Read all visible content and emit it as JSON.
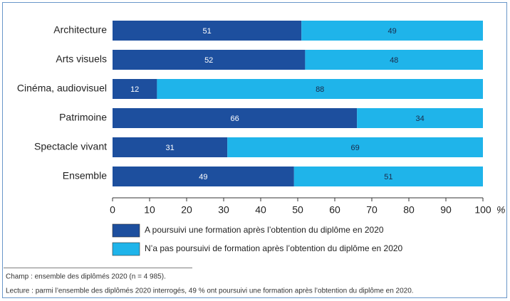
{
  "chart_data": {
    "type": "stacked_barh",
    "categories": [
      "Architecture",
      "Arts visuels",
      "Cinéma, audiovisuel",
      "Patrimoine",
      "Spectacle vivant",
      "Ensemble"
    ],
    "series": [
      {
        "name": "A poursuivi une formation après l’obtention du diplôme en 2020",
        "color": "#1d4f9e",
        "values": [
          51,
          52,
          12,
          66,
          31,
          49
        ]
      },
      {
        "name": "N’a pas poursuivi de formation après l’obtention du diplôme en 2020",
        "color": "#1fb4ea",
        "values": [
          49,
          48,
          88,
          34,
          69,
          51
        ]
      }
    ],
    "xlim": [
      0,
      100
    ],
    "xticks": [
      0,
      10,
      20,
      30,
      40,
      50,
      60,
      70,
      80,
      90,
      100
    ],
    "xlabel": "%",
    "notes": [
      "Champ : ensemble des diplômés 2020 (n = 4 985).",
      "Lecture : parmi l’ensemble des diplômés 2020 interrogés, 49 % ont poursuivi une formation après l’obtention du diplôme en 2020."
    ]
  }
}
